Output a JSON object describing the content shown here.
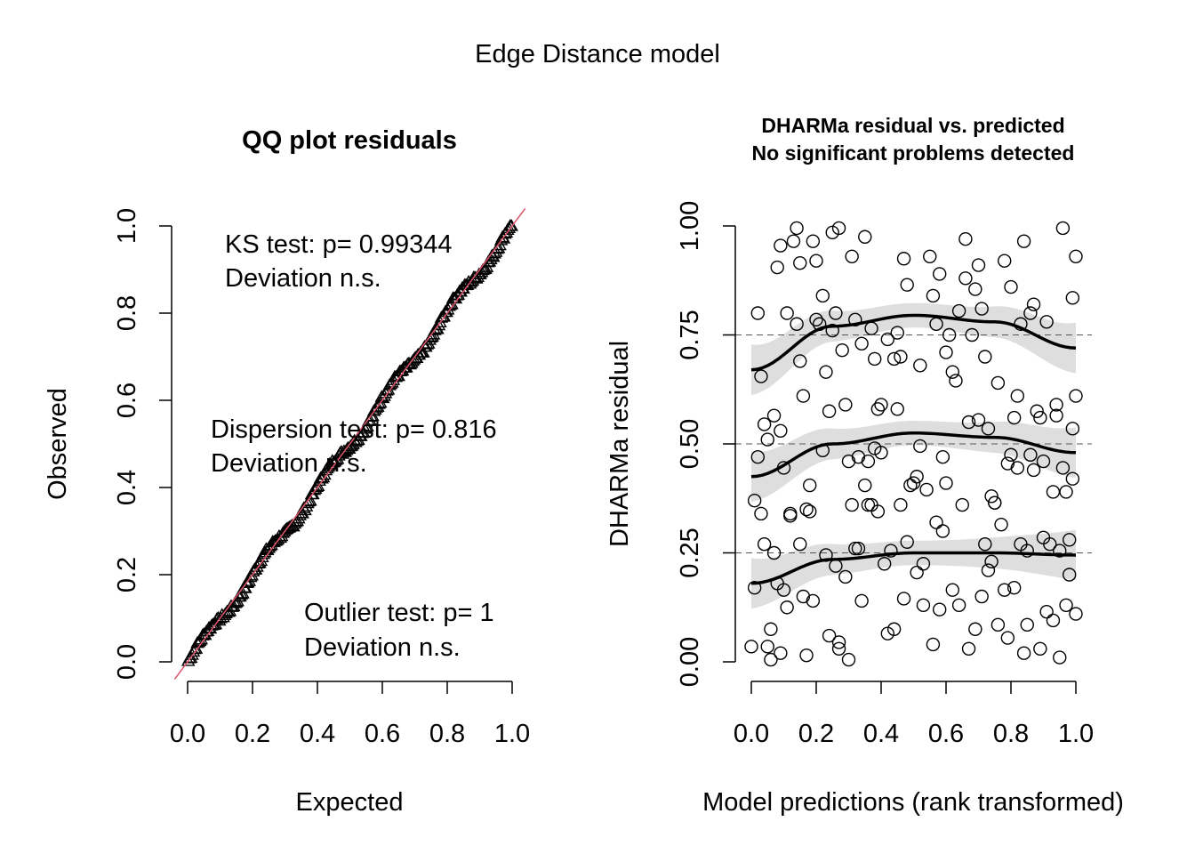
{
  "figure_title": "Edge Distance model",
  "chart_data": [
    {
      "type": "scatter",
      "title": "QQ plot residuals",
      "xlabel": "Expected",
      "ylabel": "Observed",
      "xlim": [
        0,
        1
      ],
      "ylim": [
        0,
        1
      ],
      "xticks": [
        "0.0",
        "0.2",
        "0.4",
        "0.6",
        "0.8",
        "1.0"
      ],
      "yticks": [
        "0.0",
        "0.2",
        "0.4",
        "0.6",
        "0.8",
        "1.0"
      ],
      "marker": "triangle",
      "reference_line": {
        "intercept": 0,
        "slope": 1,
        "color": "#DF536B"
      },
      "n_points": 250,
      "tests": [
        {
          "line1": "KS test: p= 0.99344",
          "line2": "Deviation  n.s."
        },
        {
          "line1": "Dispersion test: p= 0.816",
          "line2": "Deviation  n.s."
        },
        {
          "line1": "Outlier test: p= 1",
          "line2": "Deviation  n.s."
        }
      ]
    },
    {
      "type": "scatter",
      "title_line1": "DHARMa residual vs. predicted",
      "title_line2": "No significant problems detected",
      "xlabel": "Model predictions (rank transformed)",
      "ylabel": "DHARMa residual",
      "xlim": [
        0,
        1
      ],
      "ylim": [
        0,
        1
      ],
      "xticks": [
        "0.0",
        "0.2",
        "0.4",
        "0.6",
        "0.8",
        "1.0"
      ],
      "yticks": [
        "0.00",
        "0.25",
        "0.50",
        "0.75",
        "1.00"
      ],
      "reference_lines": [
        0.25,
        0.5,
        0.75
      ],
      "quantile_curves": [
        {
          "quantile": 0.25,
          "x": [
            0,
            0.25,
            0.5,
            0.75,
            1.0
          ],
          "y": [
            0.18,
            0.235,
            0.25,
            0.25,
            0.245
          ]
        },
        {
          "quantile": 0.5,
          "x": [
            0,
            0.25,
            0.5,
            0.75,
            1.0
          ],
          "y": [
            0.425,
            0.5,
            0.525,
            0.515,
            0.48
          ]
        },
        {
          "quantile": 0.75,
          "x": [
            0,
            0.25,
            0.5,
            0.75,
            1.0
          ],
          "y": [
            0.67,
            0.77,
            0.795,
            0.78,
            0.72
          ]
        }
      ],
      "points": [
        [
          0.0,
          0.035
        ],
        [
          0.01,
          0.17
        ],
        [
          0.01,
          0.37
        ],
        [
          0.02,
          0.47
        ],
        [
          0.02,
          0.8
        ],
        [
          0.03,
          0.34
        ],
        [
          0.03,
          0.655
        ],
        [
          0.04,
          0.27
        ],
        [
          0.04,
          0.545
        ],
        [
          0.05,
          0.035
        ],
        [
          0.05,
          0.51
        ],
        [
          0.06,
          0.075
        ],
        [
          0.06,
          0.005
        ],
        [
          0.07,
          0.25
        ],
        [
          0.07,
          0.565
        ],
        [
          0.08,
          0.905
        ],
        [
          0.08,
          0.18
        ],
        [
          0.09,
          0.02
        ],
        [
          0.09,
          0.53
        ],
        [
          0.09,
          0.955
        ],
        [
          0.1,
          0.445
        ],
        [
          0.1,
          0.165
        ],
        [
          0.11,
          0.125
        ],
        [
          0.11,
          0.8
        ],
        [
          0.12,
          0.34
        ],
        [
          0.12,
          0.335
        ],
        [
          0.13,
          0.965
        ],
        [
          0.14,
          0.775
        ],
        [
          0.14,
          0.995
        ],
        [
          0.15,
          0.27
        ],
        [
          0.15,
          0.69
        ],
        [
          0.15,
          0.915
        ],
        [
          0.16,
          0.61
        ],
        [
          0.16,
          0.15
        ],
        [
          0.17,
          0.35
        ],
        [
          0.17,
          0.015
        ],
        [
          0.18,
          0.405
        ],
        [
          0.18,
          0.345
        ],
        [
          0.19,
          0.14
        ],
        [
          0.19,
          0.965
        ],
        [
          0.2,
          0.785
        ],
        [
          0.2,
          0.92
        ],
        [
          0.21,
          0.775
        ],
        [
          0.22,
          0.485
        ],
        [
          0.22,
          0.84
        ],
        [
          0.23,
          0.245
        ],
        [
          0.23,
          0.665
        ],
        [
          0.24,
          0.06
        ],
        [
          0.24,
          0.575
        ],
        [
          0.25,
          0.985
        ],
        [
          0.25,
          0.76
        ],
        [
          0.26,
          0.22
        ],
        [
          0.26,
          0.8
        ],
        [
          0.27,
          0.045
        ],
        [
          0.27,
          0.03
        ],
        [
          0.27,
          0.995
        ],
        [
          0.28,
          0.715
        ],
        [
          0.29,
          0.195
        ],
        [
          0.29,
          0.59
        ],
        [
          0.3,
          0.005
        ],
        [
          0.3,
          0.46
        ],
        [
          0.31,
          0.93
        ],
        [
          0.31,
          0.36
        ],
        [
          0.32,
          0.785
        ],
        [
          0.32,
          0.26
        ],
        [
          0.33,
          0.26
        ],
        [
          0.33,
          0.47
        ],
        [
          0.34,
          0.14
        ],
        [
          0.34,
          0.73
        ],
        [
          0.35,
          0.405
        ],
        [
          0.35,
          0.975
        ],
        [
          0.36,
          0.46
        ],
        [
          0.36,
          0.36
        ],
        [
          0.37,
          0.36
        ],
        [
          0.37,
          0.765
        ],
        [
          0.38,
          0.49
        ],
        [
          0.38,
          0.695
        ],
        [
          0.39,
          0.345
        ],
        [
          0.39,
          0.58
        ],
        [
          0.4,
          0.59
        ],
        [
          0.4,
          0.48
        ],
        [
          0.41,
          0.225
        ],
        [
          0.42,
          0.065
        ],
        [
          0.42,
          0.74
        ],
        [
          0.43,
          0.255
        ],
        [
          0.44,
          0.075
        ],
        [
          0.44,
          0.695
        ],
        [
          0.45,
          0.58
        ],
        [
          0.45,
          0.755
        ],
        [
          0.46,
          0.7
        ],
        [
          0.46,
          0.36
        ],
        [
          0.47,
          0.925
        ],
        [
          0.47,
          0.145
        ],
        [
          0.48,
          0.275
        ],
        [
          0.48,
          0.865
        ],
        [
          0.49,
          0.405
        ],
        [
          0.5,
          0.41
        ],
        [
          0.51,
          0.205
        ],
        [
          0.51,
          0.425
        ],
        [
          0.52,
          0.495
        ],
        [
          0.52,
          0.68
        ],
        [
          0.53,
          0.225
        ],
        [
          0.53,
          0.13
        ],
        [
          0.54,
          0.395
        ],
        [
          0.55,
          0.93
        ],
        [
          0.56,
          0.84
        ],
        [
          0.56,
          0.04
        ],
        [
          0.57,
          0.32
        ],
        [
          0.57,
          0.775
        ],
        [
          0.58,
          0.89
        ],
        [
          0.58,
          0.12
        ],
        [
          0.59,
          0.47
        ],
        [
          0.59,
          0.3
        ],
        [
          0.6,
          0.71
        ],
        [
          0.6,
          0.41
        ],
        [
          0.61,
          0.75
        ],
        [
          0.62,
          0.165
        ],
        [
          0.62,
          0.665
        ],
        [
          0.63,
          0.645
        ],
        [
          0.64,
          0.13
        ],
        [
          0.64,
          0.805
        ],
        [
          0.65,
          0.36
        ],
        [
          0.66,
          0.97
        ],
        [
          0.66,
          0.88
        ],
        [
          0.67,
          0.03
        ],
        [
          0.67,
          0.55
        ],
        [
          0.68,
          0.75
        ],
        [
          0.69,
          0.075
        ],
        [
          0.69,
          0.855
        ],
        [
          0.7,
          0.555
        ],
        [
          0.7,
          0.91
        ],
        [
          0.71,
          0.81
        ],
        [
          0.71,
          0.15
        ],
        [
          0.72,
          0.27
        ],
        [
          0.72,
          0.7
        ],
        [
          0.73,
          0.21
        ],
        [
          0.73,
          0.535
        ],
        [
          0.74,
          0.38
        ],
        [
          0.74,
          0.23
        ],
        [
          0.75,
          0.365
        ],
        [
          0.75,
          0.365
        ],
        [
          0.76,
          0.64
        ],
        [
          0.76,
          0.085
        ],
        [
          0.77,
          0.315
        ],
        [
          0.78,
          0.92
        ],
        [
          0.78,
          0.165
        ],
        [
          0.79,
          0.455
        ],
        [
          0.79,
          0.055
        ],
        [
          0.8,
          0.475
        ],
        [
          0.8,
          0.86
        ],
        [
          0.81,
          0.56
        ],
        [
          0.81,
          0.17
        ],
        [
          0.82,
          0.445
        ],
        [
          0.82,
          0.61
        ],
        [
          0.83,
          0.775
        ],
        [
          0.83,
          0.27
        ],
        [
          0.84,
          0.965
        ],
        [
          0.84,
          0.02
        ],
        [
          0.85,
          0.255
        ],
        [
          0.85,
          0.085
        ],
        [
          0.86,
          0.8
        ],
        [
          0.86,
          0.475
        ],
        [
          0.87,
          0.44
        ],
        [
          0.87,
          0.82
        ],
        [
          0.88,
          0.575
        ],
        [
          0.89,
          0.03
        ],
        [
          0.89,
          0.56
        ],
        [
          0.9,
          0.46
        ],
        [
          0.9,
          0.285
        ],
        [
          0.91,
          0.115
        ],
        [
          0.91,
          0.78
        ],
        [
          0.92,
          0.27
        ],
        [
          0.93,
          0.39
        ],
        [
          0.93,
          0.095
        ],
        [
          0.94,
          0.59
        ],
        [
          0.94,
          0.565
        ],
        [
          0.95,
          0.01
        ],
        [
          0.95,
          0.255
        ],
        [
          0.96,
          0.995
        ],
        [
          0.96,
          0.445
        ],
        [
          0.97,
          0.13
        ],
        [
          0.97,
          0.39
        ],
        [
          0.98,
          0.2
        ],
        [
          0.98,
          0.28
        ],
        [
          0.99,
          0.535
        ],
        [
          0.99,
          0.835
        ],
        [
          1.0,
          0.11
        ],
        [
          1.0,
          0.61
        ],
        [
          1.0,
          0.93
        ],
        [
          0.99,
          0.42
        ]
      ]
    }
  ]
}
